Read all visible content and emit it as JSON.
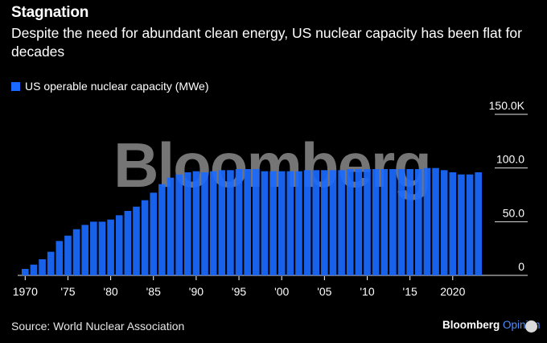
{
  "title": "Stagnation",
  "subtitle": "Despite the need for abundant clean energy, US nuclear capacity has been flat for decades",
  "legend_label": "US operable nuclear capacity (MWe)",
  "watermark": "Bloomberg",
  "source": "Source: World Nuclear Association",
  "brand_name": "Bloomberg",
  "brand_suffix": "Opinion",
  "colors": {
    "bar": "#1a6aff",
    "background": "#000000",
    "grid": "#ffffff"
  },
  "chart_data": {
    "type": "bar",
    "x": [
      1970,
      1971,
      1972,
      1973,
      1974,
      1975,
      1976,
      1977,
      1978,
      1979,
      1980,
      1981,
      1982,
      1983,
      1984,
      1985,
      1986,
      1987,
      1988,
      1989,
      1990,
      1991,
      1992,
      1993,
      1994,
      1995,
      1996,
      1997,
      1998,
      1999,
      2000,
      2001,
      2002,
      2003,
      2004,
      2005,
      2006,
      2007,
      2008,
      2009,
      2010,
      2011,
      2012,
      2013,
      2014,
      2015,
      2016,
      2017,
      2018,
      2019,
      2020,
      2021,
      2022,
      2023
    ],
    "values": [
      6,
      10,
      15,
      22,
      32,
      37,
      43,
      47,
      50,
      50,
      52,
      56,
      60,
      64,
      70,
      77,
      85,
      91,
      94,
      96,
      97,
      96,
      97,
      98,
      98,
      99,
      99,
      99,
      97,
      97,
      97,
      97,
      97,
      98,
      98,
      98,
      98,
      98,
      99,
      99,
      99,
      99,
      99,
      99,
      99,
      99,
      99,
      100,
      100,
      98,
      96,
      94,
      94,
      96
    ],
    "ylim": [
      0,
      150
    ],
    "yticks": [
      "0",
      "50.0",
      "100.0",
      "150.0K"
    ],
    "xticks": [
      "1970",
      "'75",
      "'80",
      "'85",
      "'90",
      "'95",
      "'00",
      "'05",
      "'10",
      "'15",
      "2020"
    ],
    "xtick_years": [
      1970,
      1975,
      1980,
      1985,
      1990,
      1995,
      2000,
      2005,
      2010,
      2015,
      2020
    ],
    "grid": true
  }
}
